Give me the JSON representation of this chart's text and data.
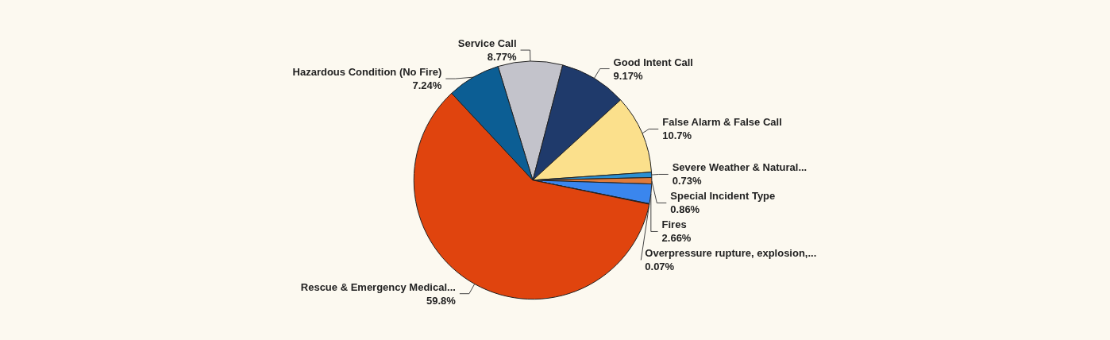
{
  "chart_data": {
    "type": "pie",
    "categories": [
      "Service Call",
      "Good Intent Call",
      "False Alarm & False Call",
      "Severe Weather & Natural...",
      "Special Incident Type",
      "Fires",
      "Overpressure rupture, explosion,...",
      "Rescue & Emergency Medical...",
      "Hazardous Condition (No Fire)"
    ],
    "values": [
      8.77,
      9.17,
      10.7,
      0.73,
      0.86,
      2.66,
      0.07,
      59.8,
      7.24
    ],
    "colors": [
      "#c3c3cb",
      "#1f3a6b",
      "#fbe08c",
      "#2b8fd2",
      "#e07a3a",
      "#3a86ee",
      "#b0301c",
      "#e0440e",
      "#0c5e94"
    ],
    "value_labels": [
      "8.77%",
      "9.17%",
      "10.7%",
      "0.73%",
      "0.86%",
      "2.66%",
      "0.07%",
      "59.8%",
      "7.24%"
    ],
    "legend": false
  }
}
